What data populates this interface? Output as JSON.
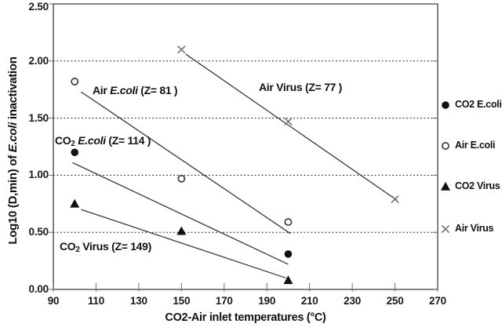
{
  "chart_data": {
    "type": "scatter",
    "title": "",
    "ylabel": "Log10 (D,min) of E.coli inactivation",
    "ylabel_parts": [
      {
        "text": "Log10 (D,min) of "
      },
      {
        "text": "E.coli",
        "italic": true
      },
      {
        "text": " inactivation"
      }
    ],
    "xlabel": "CO2-Air inlet temperatures (°C)",
    "xlabel_parts": [
      {
        "text": "CO2-Air inlet temperatures (°C)"
      }
    ],
    "xlim": [
      90,
      270
    ],
    "ylim": [
      0,
      2.5
    ],
    "xticks": [
      90,
      110,
      130,
      150,
      170,
      190,
      210,
      230,
      250,
      270
    ],
    "ytick_labels": [
      "0.00",
      "0.50",
      "1.00",
      "1.50",
      "2.00",
      "2.50"
    ],
    "grid_y": [
      0.5,
      1.0,
      1.5,
      2.0
    ],
    "grid_style": "dashed-horizontal",
    "legend_position": "right-outside",
    "series": [
      {
        "name": "CO2 E.coli",
        "marker": "filled-circle",
        "color": "#111111",
        "points": [
          [
            100,
            1.2
          ],
          [
            200,
            0.31
          ]
        ],
        "trendline": [
          [
            99,
            1.11
          ],
          [
            200,
            0.22
          ]
        ]
      },
      {
        "name": "Air E.coli",
        "marker": "open-circle",
        "color": "#3d3d3d",
        "points": [
          [
            100,
            1.82
          ],
          [
            150,
            0.97
          ],
          [
            200,
            0.59
          ]
        ],
        "trendline": [
          [
            103,
            1.73
          ],
          [
            201,
            0.49
          ]
        ]
      },
      {
        "name": "CO2 Virus",
        "marker": "filled-triangle",
        "color": "#111111",
        "points": [
          [
            100,
            0.75
          ],
          [
            150,
            0.51
          ],
          [
            200,
            0.08
          ]
        ],
        "trendline": [
          [
            103,
            0.7
          ],
          [
            199,
            0.1
          ]
        ]
      },
      {
        "name": "Air Virus",
        "marker": "x-mark",
        "color": "#74747e",
        "points": [
          [
            150,
            2.1
          ],
          [
            200,
            1.47
          ],
          [
            250,
            0.79
          ]
        ],
        "trendline": [
          [
            152,
            2.06
          ],
          [
            251,
            0.78
          ]
        ]
      }
    ],
    "annotations": [
      {
        "parts": [
          {
            "text": "Air "
          },
          {
            "text": "E.coli",
            "italic": true
          },
          {
            "text": " (Z= 81 )"
          }
        ],
        "x": 118,
        "y": 107
      },
      {
        "parts": [
          {
            "text": "CO"
          },
          {
            "text": "2",
            "sub": true
          },
          {
            "text": " "
          },
          {
            "text": "E.coli",
            "italic": true
          },
          {
            "text": " (Z= 114 )"
          }
        ],
        "x": 70,
        "y": 171
      },
      {
        "parts": [
          {
            "text": "Air Virus (Z= 77 )"
          }
        ],
        "x": 330,
        "y": 103
      },
      {
        "parts": [
          {
            "text": "CO"
          },
          {
            "text": "2",
            "sub": true
          },
          {
            "text": " Virus (Z= 149)"
          }
        ],
        "x": 76,
        "y": 306
      }
    ],
    "legend_items": [
      {
        "label": "CO2 E.coli",
        "marker": "filled-circle",
        "y": 126
      },
      {
        "label": "Air E.coli",
        "marker": "open-circle",
        "y": 178
      },
      {
        "label": "CO2 Virus",
        "marker": "filled-triangle",
        "y": 230
      },
      {
        "label": "Air Virus",
        "marker": "x-mark",
        "y": 284
      }
    ],
    "colors": {
      "trendline": "#3a3a3e",
      "grid": "#2e2e2e",
      "border": "#595959",
      "marker_dark": "#111111",
      "marker_gray": "#74747e",
      "text": "#111111"
    }
  }
}
